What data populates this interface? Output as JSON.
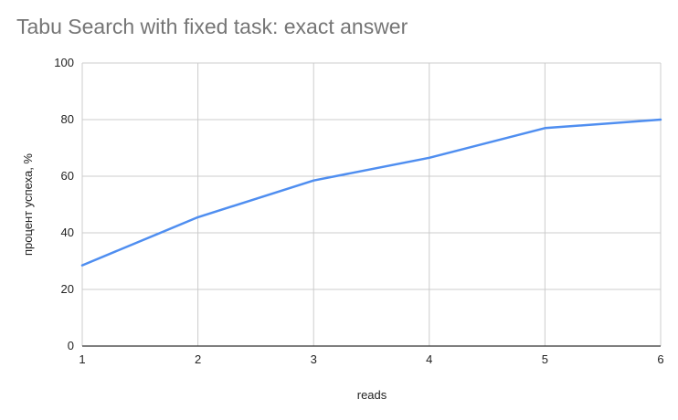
{
  "chart_data": {
    "type": "line",
    "title": "Tabu Search with fixed task: exact answer",
    "xlabel": "reads",
    "ylabel": "процент успеха, %",
    "x": [
      1,
      2,
      3,
      4,
      5,
      6
    ],
    "xlim": [
      1,
      6
    ],
    "ylim": [
      0,
      100
    ],
    "y_ticks": [
      0,
      20,
      40,
      60,
      80,
      100
    ],
    "x_ticks": [
      1,
      2,
      3,
      4,
      5,
      6
    ],
    "grid": true,
    "series": [
      {
        "values": [
          28.5,
          45.5,
          58.5,
          66.5,
          77,
          80
        ],
        "color": "#4f8ef0"
      }
    ],
    "colors": {
      "grid": "#cccccc",
      "axis": "#333333",
      "title": "#757575"
    }
  }
}
